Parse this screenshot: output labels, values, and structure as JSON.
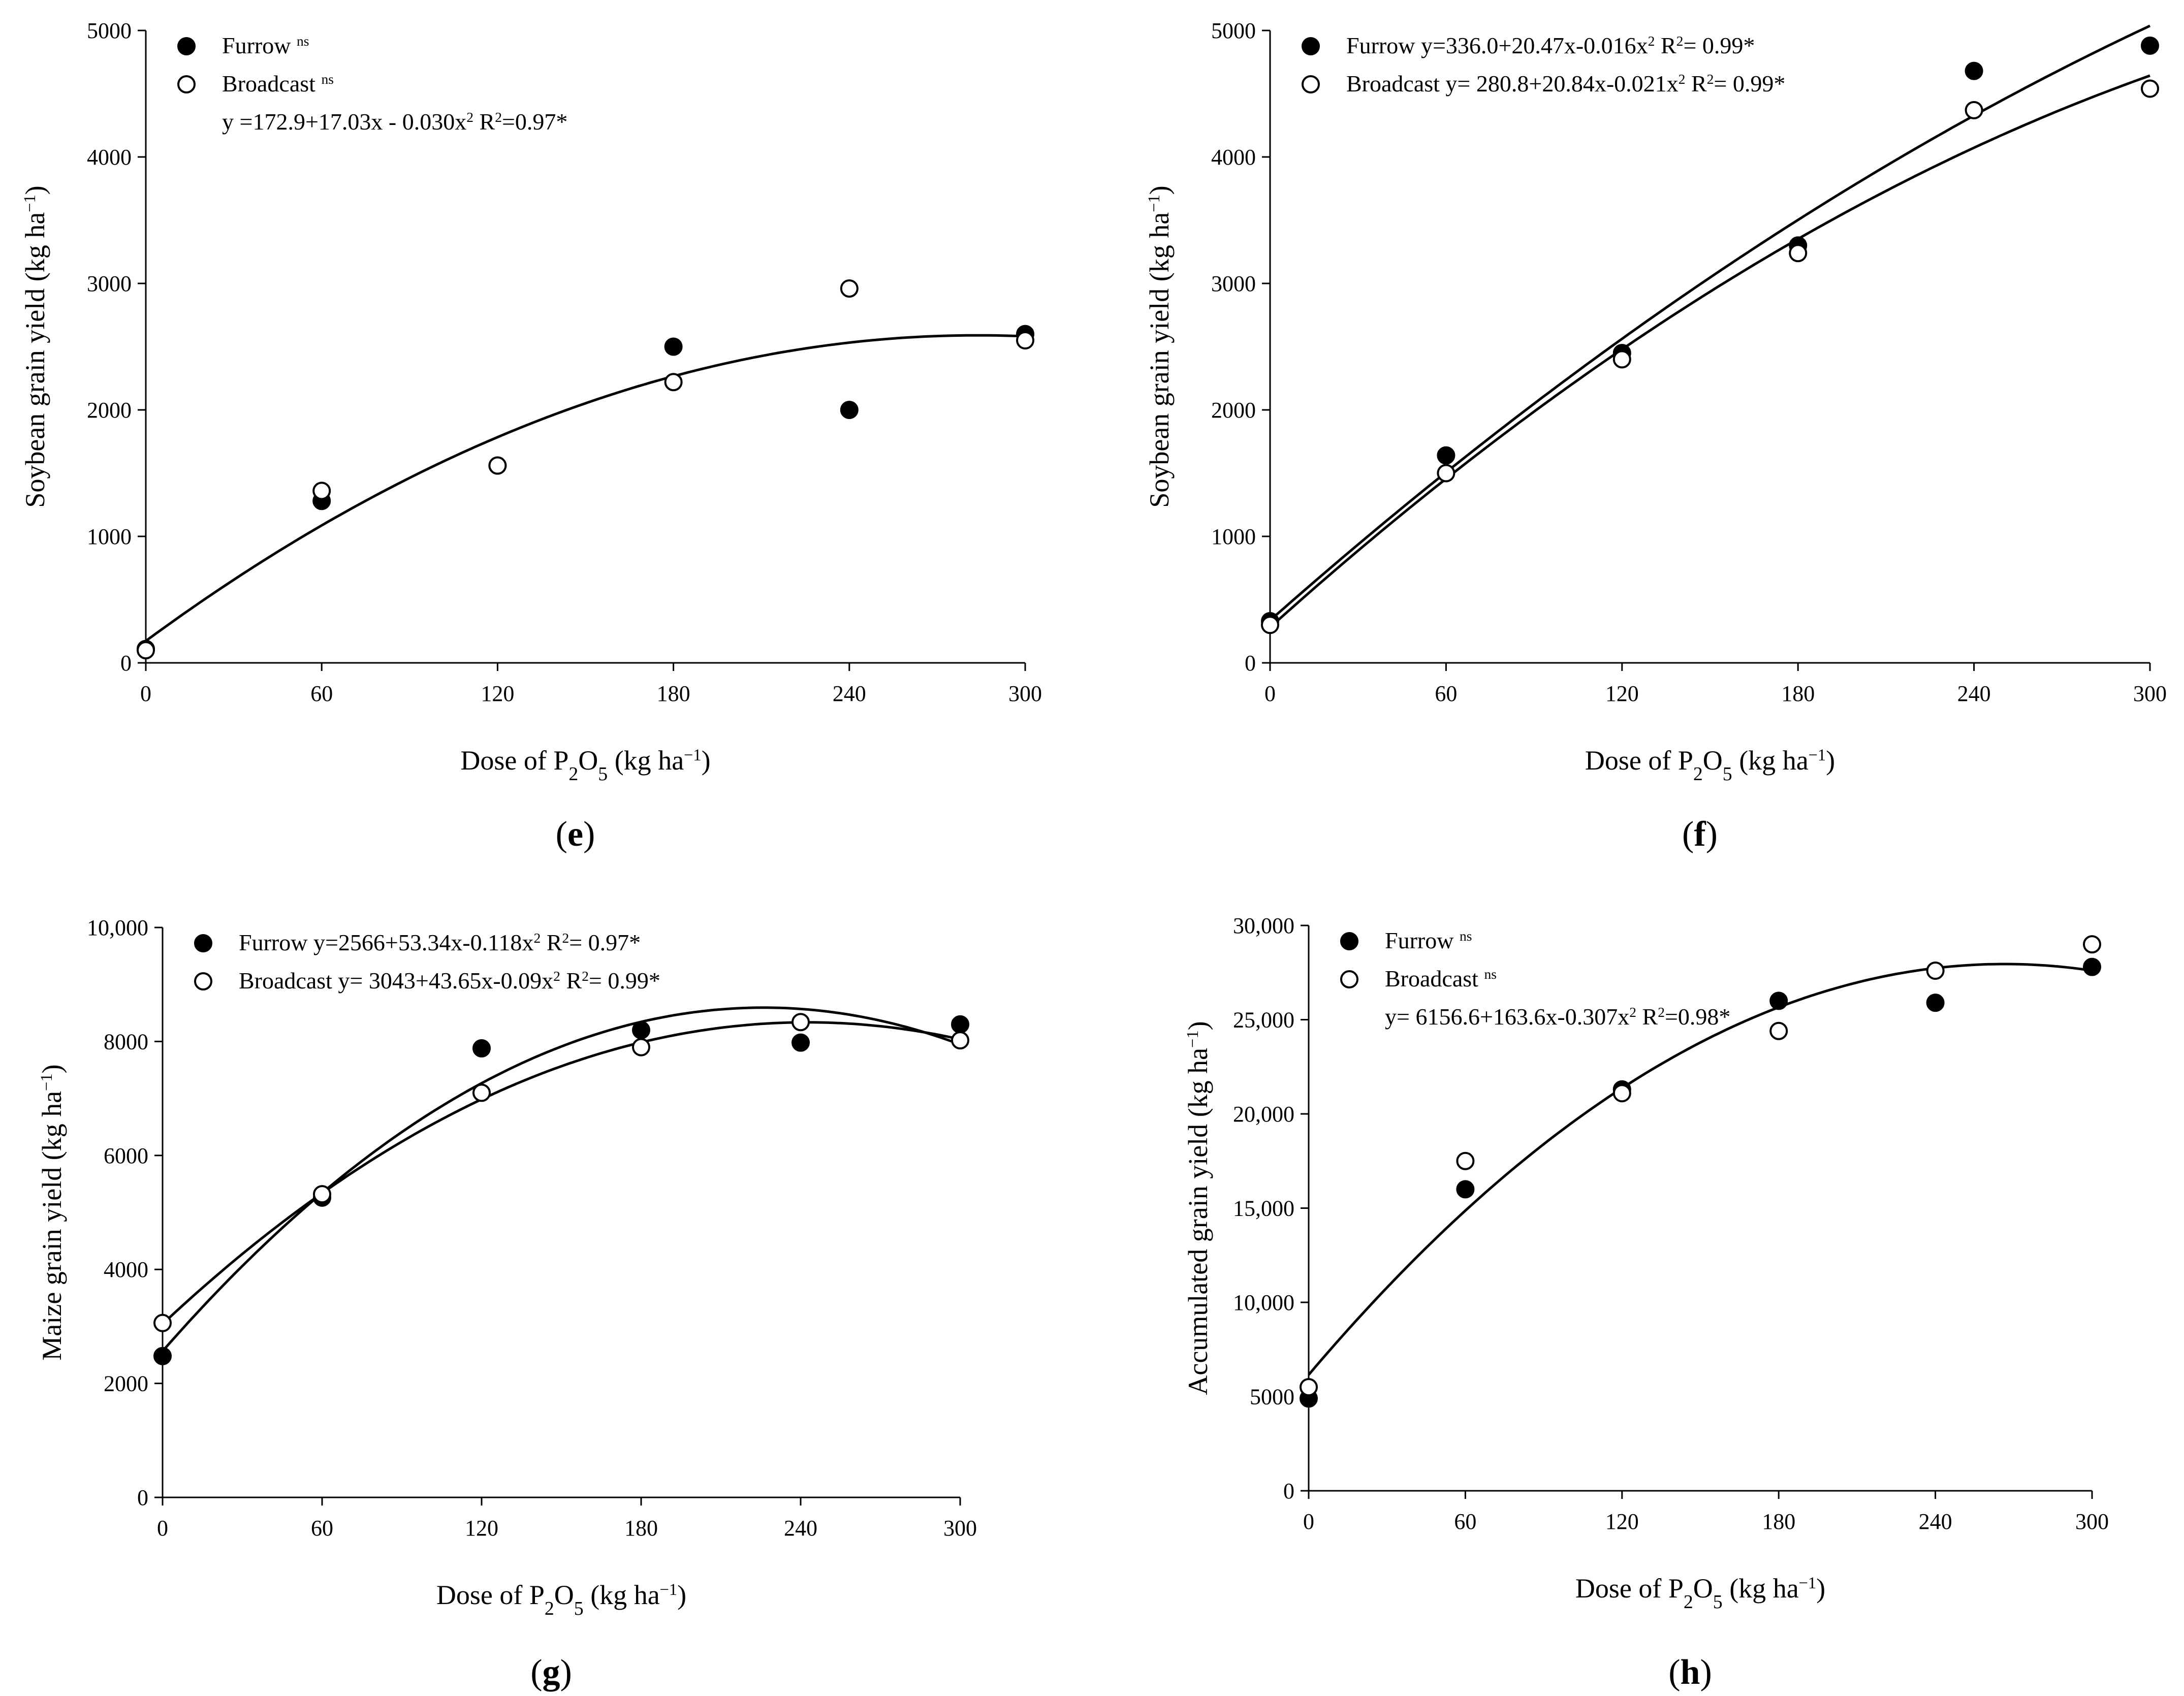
{
  "chart_data": [
    {
      "id": "e",
      "type": "scatter",
      "panel_label_open": "(",
      "panel_label_letter": "e",
      "panel_label_close": ")",
      "xlabel": "Dose of  P2O5 (kg ha−1)",
      "ylabel": "Soybean grain yield (kg ha−1)",
      "xlim": [
        0,
        300
      ],
      "ylim": [
        0,
        5000
      ],
      "x_ticks": [
        0,
        60,
        120,
        180,
        240,
        300
      ],
      "y_ticks": [
        0,
        1000,
        2000,
        3000,
        4000,
        5000
      ],
      "y_tick_labels": [
        "0",
        "1000",
        "2000",
        "3000",
        "4000",
        "5000"
      ],
      "legend_position": "top-left",
      "series": [
        {
          "name": "Furrow",
          "superscript": "ns",
          "marker": "filled",
          "x": [
            0,
            60,
            120,
            180,
            240,
            300
          ],
          "values": [
            110,
            1280,
            1560,
            2500,
            2000,
            2600
          ]
        },
        {
          "name": "Broadcast",
          "superscript": "ns",
          "marker": "open",
          "x": [
            0,
            60,
            120,
            180,
            240,
            300
          ],
          "values": [
            100,
            1360,
            1560,
            2220,
            2960,
            2550
          ]
        }
      ],
      "fits": [
        {
          "a": 172.9,
          "b": 17.03,
          "c": -0.03
        }
      ],
      "equation_line": "y =172.9+17.03x - 0.030x2 R2=0.97*"
    },
    {
      "id": "f",
      "type": "scatter",
      "panel_label_open": "(",
      "panel_label_letter": "f",
      "panel_label_close": ")",
      "xlabel": "Dose of  P2O5 (kg ha−1)",
      "ylabel": "Soybean grain yield (kg ha−1)",
      "xlim": [
        0,
        300
      ],
      "ylim": [
        0,
        5000
      ],
      "x_ticks": [
        0,
        60,
        120,
        180,
        240,
        300
      ],
      "y_ticks": [
        0,
        1000,
        2000,
        3000,
        4000,
        5000
      ],
      "y_tick_labels": [
        "0",
        "1000",
        "2000",
        "3000",
        "4000",
        "5000"
      ],
      "legend_position": "top-left",
      "series": [
        {
          "name": "Furrow",
          "marker": "filled",
          "x": [
            0,
            60,
            120,
            180,
            240,
            300
          ],
          "values": [
            330,
            1640,
            2450,
            3300,
            4680,
            4880
          ],
          "equation": "Furrow y=336.0+20.47x-0.016x2 R2= 0.99*"
        },
        {
          "name": "Broadcast",
          "marker": "open",
          "x": [
            0,
            60,
            120,
            180,
            240,
            300
          ],
          "values": [
            300,
            1500,
            2400,
            3240,
            4370,
            4540
          ],
          "equation": "Broadcast y= 280.8+20.84x-0.021x2 R2= 0.99*"
        }
      ],
      "fits": [
        {
          "a": 336.0,
          "b": 20.47,
          "c": -0.016
        },
        {
          "a": 280.8,
          "b": 20.84,
          "c": -0.021
        }
      ]
    },
    {
      "id": "g",
      "type": "scatter",
      "panel_label_open": "(",
      "panel_label_letter": "g",
      "panel_label_close": ")",
      "xlabel": "Dose of  P2O5 (kg ha−1)",
      "ylabel": "Maize grain yield (kg ha−1)",
      "xlim": [
        0,
        300
      ],
      "ylim": [
        0,
        10000
      ],
      "x_ticks": [
        0,
        60,
        120,
        180,
        240,
        300
      ],
      "y_ticks": [
        0,
        2000,
        4000,
        6000,
        8000,
        10000
      ],
      "y_tick_labels": [
        "0",
        "2000",
        "4000",
        "6000",
        "8000",
        "10,000"
      ],
      "legend_position": "top-left",
      "series": [
        {
          "name": "Furrow",
          "marker": "filled",
          "x": [
            0,
            60,
            120,
            180,
            240,
            300
          ],
          "values": [
            2480,
            5260,
            7880,
            8200,
            7980,
            8300
          ],
          "equation": "Furrow y=2566+53.34x-0.118x2 R2= 0.97*"
        },
        {
          "name": "Broadcast",
          "marker": "open",
          "x": [
            0,
            60,
            120,
            180,
            240,
            300
          ],
          "values": [
            3060,
            5320,
            7100,
            7900,
            8340,
            8020
          ],
          "equation": "Broadcast y= 3043+43.65x-0.09x2 R2= 0.99*"
        }
      ],
      "fits": [
        {
          "a": 2566,
          "b": 53.34,
          "c": -0.118
        },
        {
          "a": 3043,
          "b": 43.65,
          "c": -0.09
        }
      ]
    },
    {
      "id": "h",
      "type": "scatter",
      "panel_label_open": "(",
      "panel_label_letter": "h",
      "panel_label_close": ")",
      "xlabel": "Dose of  P2O5 (kg ha−1)",
      "ylabel": "Accumulated grain yield (kg ha−1)",
      "xlim": [
        0,
        300
      ],
      "ylim": [
        0,
        30000
      ],
      "x_ticks": [
        0,
        60,
        120,
        180,
        240,
        300
      ],
      "y_ticks": [
        0,
        5000,
        10000,
        15000,
        20000,
        25000,
        30000
      ],
      "y_tick_labels": [
        "0",
        "5000",
        "10,000",
        "15,000",
        "20,000",
        "25,000",
        "30,000"
      ],
      "legend_position": "top-left",
      "series": [
        {
          "name": "Furrow",
          "superscript": "ns",
          "marker": "filled",
          "x": [
            0,
            60,
            120,
            180,
            240,
            300
          ],
          "values": [
            4900,
            16000,
            21300,
            26000,
            25900,
            27800
          ]
        },
        {
          "name": "Broadcast",
          "superscript": "ns",
          "marker": "open",
          "x": [
            0,
            60,
            120,
            180,
            240,
            300
          ],
          "values": [
            5500,
            17500,
            21100,
            24400,
            27600,
            29000
          ]
        }
      ],
      "fits": [
        {
          "a": 6156.6,
          "b": 163.6,
          "c": -0.307
        }
      ],
      "equation_line": "y= 6156.6+163.6x-0.307x2 R2=0.98*"
    }
  ]
}
